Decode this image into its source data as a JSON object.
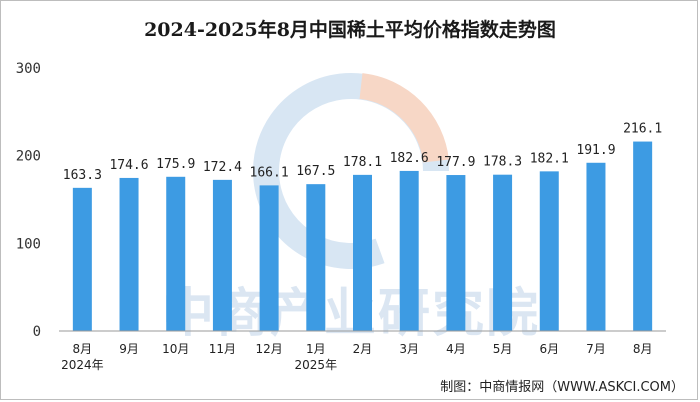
{
  "chart_data": {
    "type": "bar",
    "title": "2024-2025年8月中国稀土平均价格指数走势图",
    "categories": [
      "8月",
      "9月",
      "10月",
      "11月",
      "12月",
      "1月",
      "2月",
      "3月",
      "4月",
      "5月",
      "6月",
      "7月",
      "8月"
    ],
    "values": [
      163.3,
      174.6,
      175.9,
      172.4,
      166.1,
      167.5,
      178.1,
      182.6,
      177.9,
      178.3,
      182.1,
      191.9,
      216.1
    ],
    "value_labels": [
      "163.3",
      "174.6",
      "175.9",
      "172.4",
      "166.1",
      "167.5",
      "178.1",
      "182.6",
      "177.9",
      "178.3",
      "182.1",
      "191.9",
      "216.1"
    ],
    "year_labels": [
      {
        "category_index": 0,
        "text": "2024年"
      },
      {
        "category_index": 5,
        "text": "2025年"
      }
    ],
    "ylim": [
      0,
      300
    ],
    "yticks": [
      0,
      100,
      200,
      300
    ],
    "grid": false,
    "bar_color": "#3d9be3",
    "xlabel": "",
    "ylabel": ""
  },
  "watermark": {
    "text": "中商产业研究院",
    "ring_color_main": "#d8e6f3",
    "ring_color_accent": "#f7d7c6"
  },
  "source": "制图：中商情报网（WWW.ASKCI.COM）"
}
